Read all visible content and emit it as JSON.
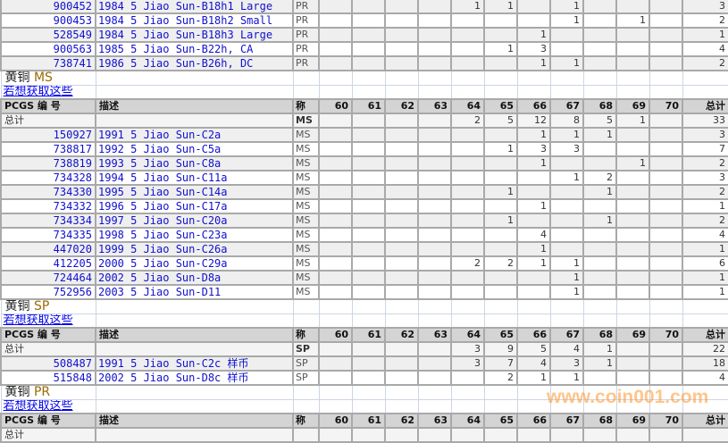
{
  "grade_columns": [
    "60",
    "61",
    "62",
    "63",
    "64",
    "65",
    "66",
    "67",
    "68",
    "69",
    "70"
  ],
  "header": {
    "id": "PCGS 编 号",
    "desc": "描述",
    "grade": "称",
    "total": "总计"
  },
  "total_label": "总计",
  "watermark": "www.coin001.com",
  "sections": [
    {
      "partial": true,
      "rows": [
        {
          "id": "900452",
          "desc": "1984 5 Jiao Sun-B18h1 Large",
          "grade": "PR",
          "counts": {
            "64": 1,
            "65": 1,
            "67": 1
          },
          "total": 3
        },
        {
          "id": "900453",
          "desc": "1984 5 Jiao Sun-B18h2 Small",
          "grade": "PR",
          "counts": {
            "67": 1,
            "69": 1
          },
          "total": 2
        },
        {
          "id": "528549",
          "desc": "1984 5 Jiao Sun-B18h3 Large",
          "grade": "PR",
          "counts": {
            "66": 1
          },
          "total": 1
        },
        {
          "id": "900563",
          "desc": "1985 5 Jiao Sun-B22h, CA",
          "grade": "PR",
          "counts": {
            "65": 1,
            "66": 3
          },
          "total": 4
        },
        {
          "id": "738741",
          "desc": "1986 5 Jiao Sun-B26h, DC",
          "grade": "PR",
          "counts": {
            "66": 1,
            "67": 1
          },
          "total": 2
        }
      ]
    },
    {
      "metal": "黄铜",
      "grade_type": "MS",
      "link": "若想获取这些",
      "total_row": {
        "grade": "MS",
        "counts": {
          "64": 2,
          "65": 5,
          "66": 12,
          "67": 8,
          "68": 5,
          "69": 1
        },
        "total": 33
      },
      "rows": [
        {
          "id": "150927",
          "desc": "1991 5 Jiao Sun-C2a",
          "grade": "MS",
          "counts": {
            "66": 1,
            "67": 1,
            "68": 1
          },
          "total": 3
        },
        {
          "id": "738817",
          "desc": "1992 5 Jiao Sun-C5a",
          "grade": "MS",
          "counts": {
            "65": 1,
            "66": 3,
            "67": 3
          },
          "total": 7
        },
        {
          "id": "738819",
          "desc": "1993 5 Jiao Sun-C8a",
          "grade": "MS",
          "counts": {
            "66": 1,
            "69": 1
          },
          "total": 2
        },
        {
          "id": "734328",
          "desc": "1994 5 Jiao Sun-C11a",
          "grade": "MS",
          "counts": {
            "67": 1,
            "68": 2
          },
          "total": 3
        },
        {
          "id": "734330",
          "desc": "1995 5 Jiao Sun-C14a",
          "grade": "MS",
          "counts": {
            "65": 1,
            "68": 1
          },
          "total": 2
        },
        {
          "id": "734332",
          "desc": "1996 5 Jiao Sun-C17a",
          "grade": "MS",
          "counts": {
            "66": 1
          },
          "total": 1
        },
        {
          "id": "734334",
          "desc": "1997 5 Jiao Sun-C20a",
          "grade": "MS",
          "counts": {
            "65": 1,
            "68": 1
          },
          "total": 2
        },
        {
          "id": "734335",
          "desc": "1998 5 Jiao Sun-C23a",
          "grade": "MS",
          "counts": {
            "66": 4
          },
          "total": 4
        },
        {
          "id": "447020",
          "desc": "1999 5 Jiao Sun-C26a",
          "grade": "MS",
          "counts": {
            "66": 1
          },
          "total": 1
        },
        {
          "id": "412205",
          "desc": "2000 5 Jiao Sun-C29a",
          "grade": "MS",
          "counts": {
            "64": 2,
            "65": 2,
            "66": 1,
            "67": 1
          },
          "total": 6
        },
        {
          "id": "724464",
          "desc": "2002 5 Jiao Sun-D8a",
          "grade": "MS",
          "counts": {
            "67": 1
          },
          "total": 1
        },
        {
          "id": "752956",
          "desc": "2003 5 Jiao Sun-D11",
          "grade": "MS",
          "counts": {
            "67": 1
          },
          "total": 1
        }
      ]
    },
    {
      "metal": "黄铜",
      "grade_type": "SP",
      "link": "若想获取这些",
      "total_row": {
        "grade": "SP",
        "counts": {
          "64": 3,
          "65": 9,
          "66": 5,
          "67": 4,
          "68": 1
        },
        "total": 22
      },
      "rows": [
        {
          "id": "508487",
          "desc": "1991 5 Jiao Sun-C2c 样币",
          "grade": "SP",
          "counts": {
            "64": 3,
            "65": 7,
            "66": 4,
            "67": 3,
            "68": 1
          },
          "total": 18
        },
        {
          "id": "515848",
          "desc": "2002 5 Jiao Sun-D8c 样币",
          "grade": "SP",
          "counts": {
            "65": 2,
            "66": 1,
            "67": 1
          },
          "total": 4
        }
      ]
    },
    {
      "metal": "黄铜",
      "grade_type": "PR",
      "link": "若想获取这些",
      "header_only": true,
      "rows": []
    }
  ]
}
